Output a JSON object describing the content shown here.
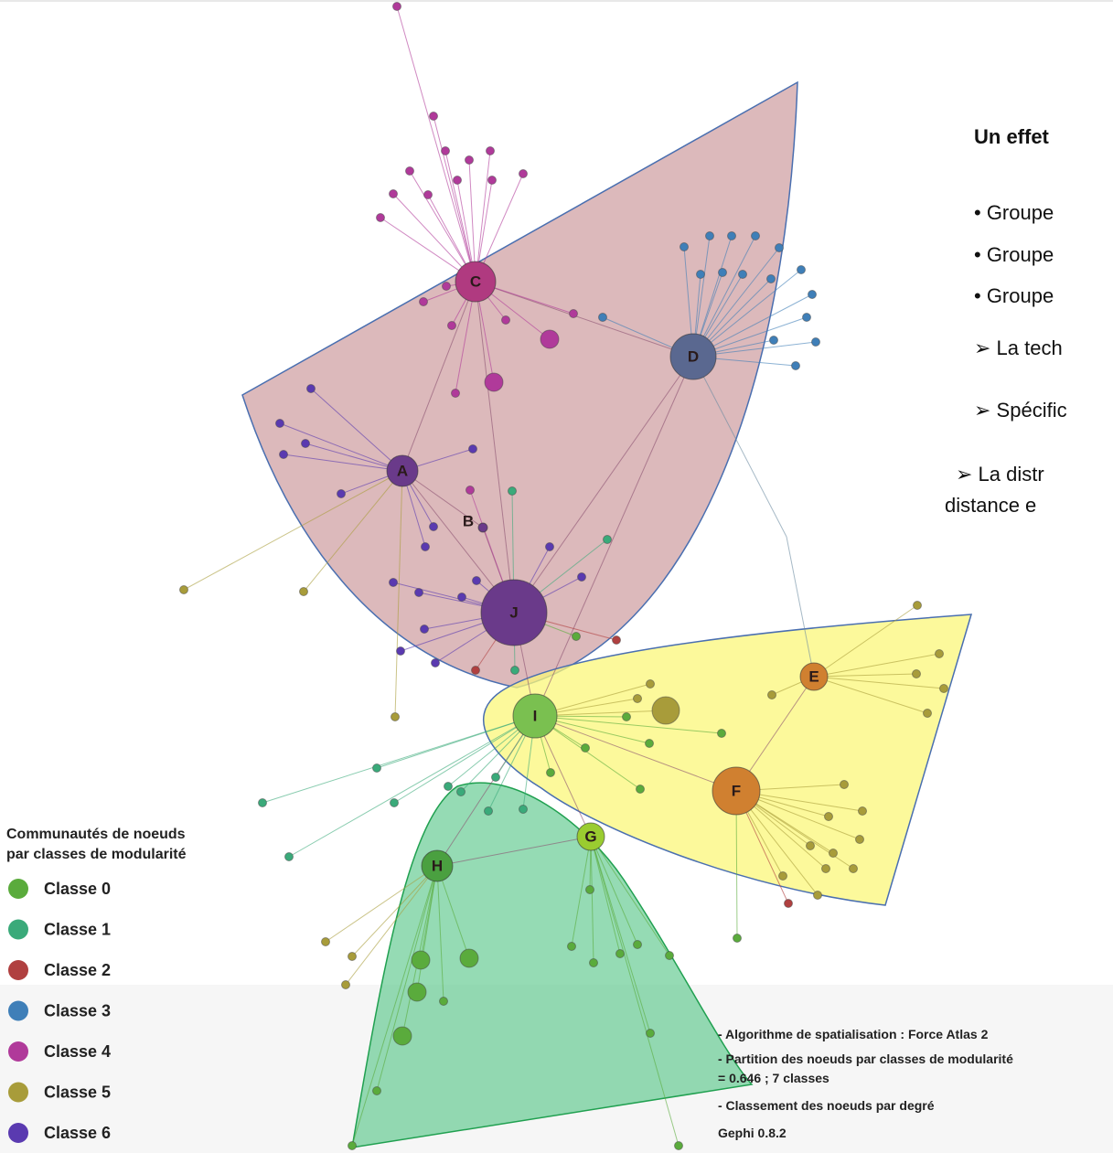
{
  "nodes": [
    {
      "label": "A"
    },
    {
      "label": "B"
    },
    {
      "label": "C"
    },
    {
      "label": "D"
    },
    {
      "label": "E"
    },
    {
      "label": "F"
    },
    {
      "label": "G"
    },
    {
      "label": "H"
    },
    {
      "label": "I"
    },
    {
      "label": "J"
    }
  ],
  "legend": {
    "title_lines": [
      "Communautés de noeuds",
      "par classes de modularité"
    ],
    "items": [
      "Classe 0",
      "Classe 1",
      "Classe 2",
      "Classe 3",
      "Classe 4",
      "Classe 5",
      "Classe 6"
    ]
  },
  "notes": [
    "- Algorithme de spatialisation : Force Atlas 2",
    "- Partition des noeuds par classes de modularité",
    "= 0.646 ; 7 classes",
    "- Classement des noeuds par degré",
    "Gephi 0.8.2"
  ],
  "panel": {
    "title": "Un effet",
    "lines": [
      "• Groupe",
      "• Groupe",
      "• Groupe",
      "➢ La tech",
      "➢ Spécific",
      "➢ La distr",
      "distance e"
    ]
  }
}
